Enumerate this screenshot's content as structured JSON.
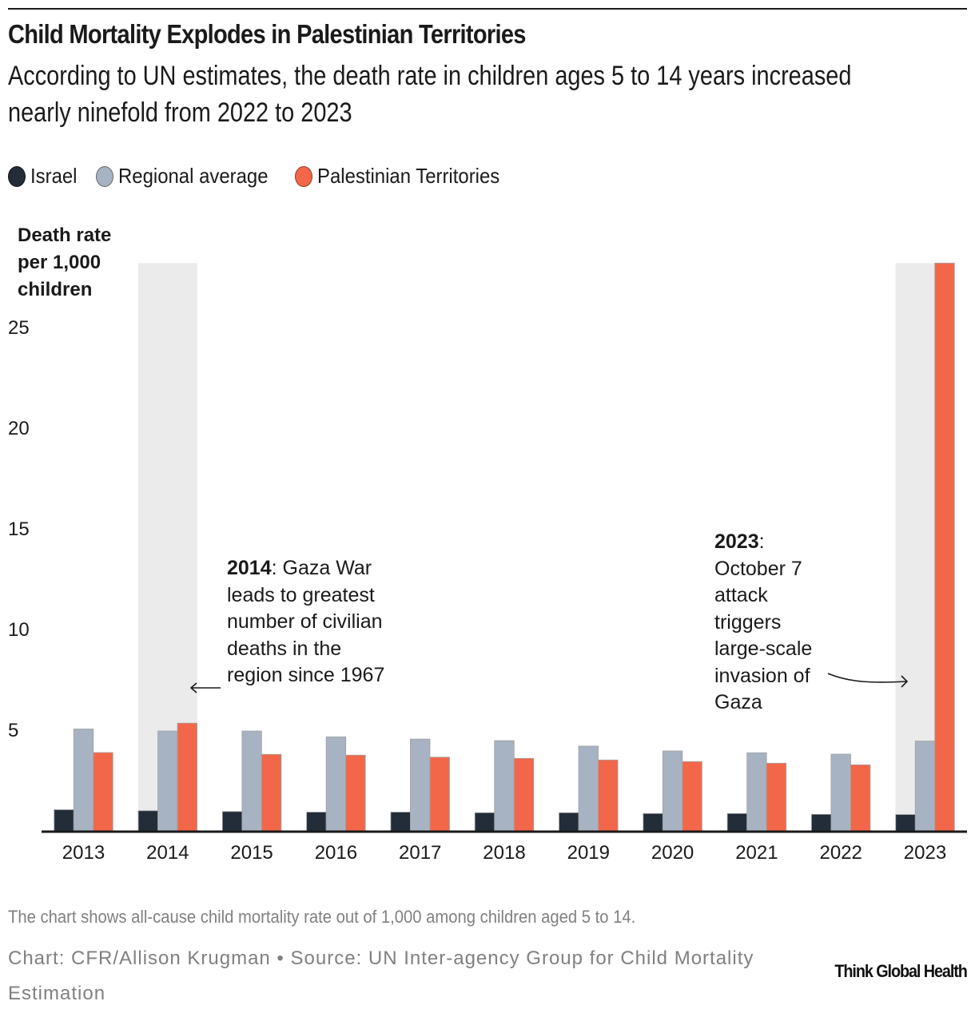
{
  "header": {
    "title": "Child Mortality Explodes in Palestinian Territories",
    "subtitle": "According to UN estimates, the death rate in children ages 5 to 14 years increased nearly ninefold from 2022 to 2023"
  },
  "legend": [
    {
      "label": "Israel",
      "color": "#232d3a"
    },
    {
      "label": "Regional average",
      "color": "#a7b3c2"
    },
    {
      "label": "Palestinian Territories",
      "color": "#f26749"
    }
  ],
  "chart_data": {
    "type": "bar",
    "title": "Child Mortality Explodes in Palestinian Territories",
    "xlabel": "",
    "ylabel": "Death rate per 1,000 children",
    "ylim": [
      0,
      28.2
    ],
    "yticks": [
      5,
      10,
      15,
      20,
      25
    ],
    "grid": false,
    "legend_position": "top-left",
    "categories": [
      "2013",
      "2014",
      "2015",
      "2016",
      "2017",
      "2018",
      "2019",
      "2020",
      "2021",
      "2022",
      "2023"
    ],
    "series": [
      {
        "name": "Israel",
        "color": "#232d3a",
        "values": [
          1.05,
          1.0,
          0.96,
          0.93,
          0.93,
          0.9,
          0.9,
          0.86,
          0.86,
          0.82,
          0.81
        ]
      },
      {
        "name": "Regional average",
        "color": "#a7b3c2",
        "values": [
          5.06,
          4.96,
          4.96,
          4.67,
          4.56,
          4.48,
          4.21,
          3.97,
          3.88,
          3.81,
          4.46
        ]
      },
      {
        "name": "Palestinian Territories",
        "color": "#f26749",
        "values": [
          3.89,
          5.35,
          3.8,
          3.76,
          3.66,
          3.6,
          3.52,
          3.44,
          3.36,
          3.28,
          28.2
        ]
      }
    ],
    "highlighted_categories": [
      "2014",
      "2023"
    ],
    "annotations": [
      {
        "category": "2014",
        "bold": "2014",
        "text": ": Gaza War leads to greatest number of civilian deaths in the region since 1967"
      },
      {
        "category": "2023",
        "bold": "2023",
        "text": ": October 7 attack triggers large-scale invasion of Gaza"
      }
    ]
  },
  "axis": {
    "ylabel_lines": [
      "Death rate",
      "per 1,000",
      "children"
    ]
  },
  "annotations": {
    "a2014_bold": "2014",
    "a2014_text": ": Gaza War leads to greatest number of civilian deaths in the region since 1967",
    "a2023_bold": "2023",
    "a2023_text": ": October 7 attack triggers large-scale invasion of Gaza"
  },
  "footer": {
    "note": "The chart shows all-cause child mortality rate out of 1,000 among children aged 5 to 14.",
    "credit": "Chart: CFR/Allison Krugman • Source: UN Inter-agency Group for Child Mortality Estimation",
    "brand": "Think Global Health"
  },
  "colors": {
    "highlight_band": "#ebebeb",
    "axis": "#1a1a1a",
    "muted_text": "#808080"
  }
}
